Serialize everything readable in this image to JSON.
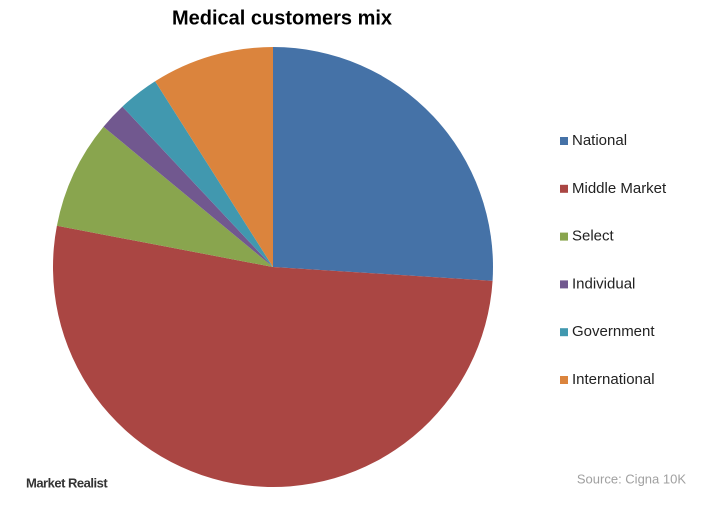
{
  "chart_data": {
    "type": "pie",
    "title": "Medical customers mix",
    "categories": [
      "National",
      "Middle Market",
      "Select",
      "Individual",
      "Government",
      "International"
    ],
    "values": [
      26,
      52,
      8,
      2,
      3,
      9
    ],
    "colors": [
      "#4572a7",
      "#aa4643",
      "#89a54e",
      "#71588f",
      "#4198af",
      "#db843d"
    ],
    "legend": "right",
    "source": "Source: Cigna 10K",
    "watermark": "Market Realist"
  }
}
